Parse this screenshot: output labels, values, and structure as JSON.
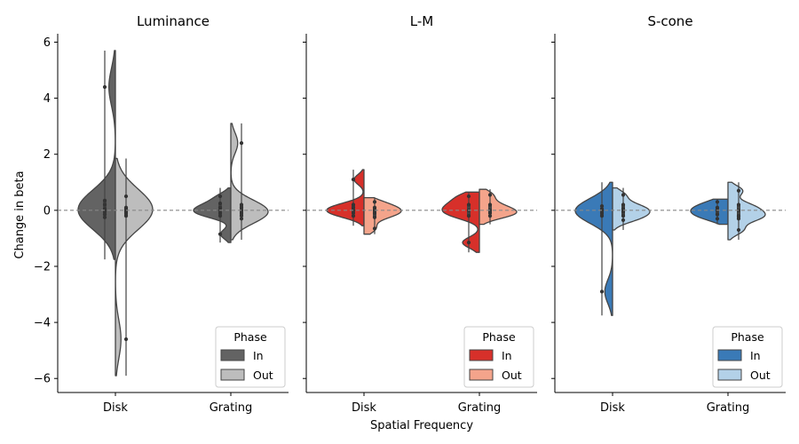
{
  "figure": {
    "xlabel": "Spatial Frequency",
    "ylabel": "Change in beta",
    "yticks": [
      "6",
      "4",
      "2",
      "0",
      "−2",
      "−4",
      "−6"
    ],
    "ytick_values": [
      6,
      4,
      2,
      0,
      -2,
      -4,
      -6
    ],
    "ylim": [
      -6.5,
      6.3
    ],
    "reference_line": 0
  },
  "chart_data": [
    {
      "type": "violin",
      "title": "Luminance",
      "categories": [
        "Disk",
        "Grating"
      ],
      "legend": {
        "title": "Phase",
        "entries": [
          "In",
          "Out"
        ],
        "placement": "lower-right"
      },
      "series": [
        {
          "name": "In",
          "color": "#636363",
          "groups": [
            {
              "category": "Disk",
              "min": -1.75,
              "max": 5.7,
              "points": [
                4.4,
                0.35,
                0.2,
                0.05,
                -0.05,
                -0.15,
                -0.25
              ]
            },
            {
              "category": "Grating",
              "min": -1.15,
              "max": 0.8,
              "points": [
                0.5,
                0.25,
                0.1,
                0.0,
                -0.1,
                -0.2,
                -0.85
              ]
            }
          ]
        },
        {
          "name": "Out",
          "color": "#bdbdbd",
          "groups": [
            {
              "category": "Disk",
              "min": -5.9,
              "max": 1.85,
              "points": [
                0.5,
                0.1,
                0.05,
                0.0,
                -0.05,
                -0.1,
                -0.2,
                -4.6
              ]
            },
            {
              "category": "Grating",
              "min": -1.05,
              "max": 3.1,
              "points": [
                2.4,
                0.2,
                0.1,
                0.0,
                -0.1,
                -0.2,
                -0.3
              ]
            }
          ]
        }
      ]
    },
    {
      "type": "violin",
      "title": "L-M",
      "categories": [
        "Disk",
        "Grating"
      ],
      "legend": {
        "title": "Phase",
        "entries": [
          "In",
          "Out"
        ],
        "placement": "lower-right"
      },
      "series": [
        {
          "name": "In",
          "color": "#d7302a",
          "groups": [
            {
              "category": "Disk",
              "min": -0.55,
              "max": 1.45,
              "points": [
                1.1,
                0.2,
                0.1,
                0.0,
                -0.1,
                -0.2
              ]
            },
            {
              "category": "Grating",
              "min": -1.5,
              "max": 0.65,
              "points": [
                0.5,
                0.2,
                0.0,
                -0.2,
                -1.15
              ]
            }
          ]
        },
        {
          "name": "Out",
          "color": "#f4a48b",
          "groups": [
            {
              "category": "Disk",
              "min": -0.85,
              "max": 0.45,
              "points": [
                0.3,
                0.1,
                0.0,
                -0.1,
                -0.25,
                -0.65
              ]
            },
            {
              "category": "Grating",
              "min": -0.5,
              "max": 0.75,
              "points": [
                0.55,
                0.2,
                0.0,
                -0.1,
                -0.2
              ]
            }
          ]
        }
      ]
    },
    {
      "type": "violin",
      "title": "S-cone",
      "categories": [
        "Disk",
        "Grating"
      ],
      "legend": {
        "title": "Phase",
        "entries": [
          "In",
          "Out"
        ],
        "placement": "lower-right"
      },
      "series": [
        {
          "name": "In",
          "color": "#3a7ab7",
          "groups": [
            {
              "category": "Disk",
              "min": -3.75,
              "max": 1.0,
              "points": [
                0.15,
                0.05,
                0.0,
                -0.1,
                -0.2,
                -2.9
              ]
            },
            {
              "category": "Grating",
              "min": -0.5,
              "max": 0.4,
              "points": [
                0.3,
                0.1,
                0.0,
                -0.15,
                -0.3
              ]
            }
          ]
        },
        {
          "name": "Out",
          "color": "#b3d1e8",
          "groups": [
            {
              "category": "Disk",
              "min": -0.7,
              "max": 0.8,
              "points": [
                0.55,
                0.2,
                0.05,
                -0.05,
                -0.2,
                -0.35
              ]
            },
            {
              "category": "Grating",
              "min": -1.05,
              "max": 1.0,
              "points": [
                0.7,
                0.2,
                0.0,
                -0.2,
                -0.3,
                -0.7
              ]
            }
          ]
        }
      ]
    }
  ]
}
